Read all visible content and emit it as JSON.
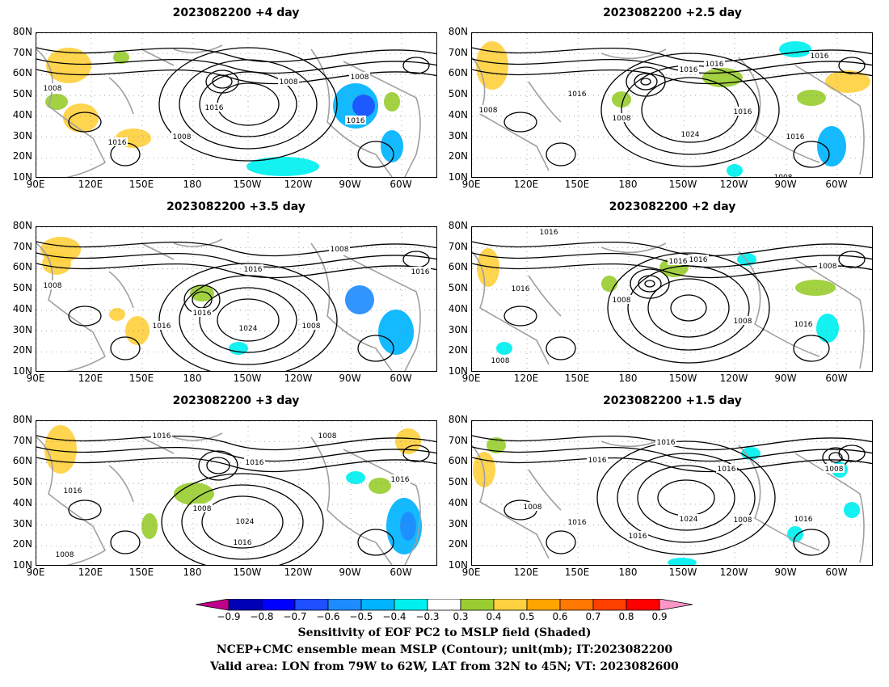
{
  "panels": [
    {
      "title": "2023082200  +4  day",
      "contour_labels": [
        "1008",
        "1016",
        "1008",
        "1016",
        "1008",
        "1016",
        "1008"
      ]
    },
    {
      "title": "2023082200  +2.5  day",
      "contour_labels": [
        "1008",
        "1016",
        "1016",
        "1016",
        "1016",
        "1008",
        "1016",
        "1024",
        "1016",
        "1008"
      ]
    },
    {
      "title": "2023082200  +3.5  day",
      "contour_labels": [
        "1008",
        "1016",
        "1016",
        "1008",
        "1008",
        "1024",
        "1016",
        "1016"
      ]
    },
    {
      "title": "2023082200  +2  day",
      "contour_labels": [
        "1016",
        "1016",
        "1016",
        "1008",
        "1016",
        "1008",
        "1008",
        "1016",
        "1008"
      ]
    },
    {
      "title": "2023082200  +3  day",
      "contour_labels": [
        "1016",
        "1008",
        "1016",
        "1016",
        "1008",
        "1024",
        "1016",
        "1016",
        "1008"
      ]
    },
    {
      "title": "2023082200  +1.5  day",
      "contour_labels": [
        "1016",
        "1016",
        "1016",
        "1008",
        "1008",
        "1016",
        "1024",
        "1016",
        "1008",
        "1016"
      ]
    }
  ],
  "axes": {
    "lat_labels": [
      "80N",
      "70N",
      "60N",
      "50N",
      "40N",
      "30N",
      "20N",
      "10N"
    ],
    "lon_labels": [
      "90E",
      "120E",
      "150E",
      "180",
      "150W",
      "120W",
      "90W",
      "60W"
    ]
  },
  "colorbar": {
    "labels": [
      "−0.9",
      "−0.8",
      "−0.7",
      "−0.6",
      "−0.5",
      "−0.4",
      "−0.3",
      "0.3",
      "0.4",
      "0.5",
      "0.6",
      "0.7",
      "0.8",
      "0.9"
    ],
    "colors": [
      "#c0008c",
      "#0000b4",
      "#0000ff",
      "#1e50ff",
      "#1e8cff",
      "#00b4ff",
      "#00f0f0",
      "#ffffff",
      "#9acd32",
      "#ffd040",
      "#ffa500",
      "#ff7800",
      "#ff4000",
      "#ff0000",
      "#ff96c8"
    ]
  },
  "caption": {
    "line1": "Sensitivity of EOF PC2 to MSLP field (Shaded)",
    "line2": "NCEP+CMC ensemble mean MSLP (Contour); unit(mb); IT:2023082200",
    "line3": "Valid area: LON from 79W to 62W, LAT from 32N to 45N; VT: 2023082600"
  }
}
